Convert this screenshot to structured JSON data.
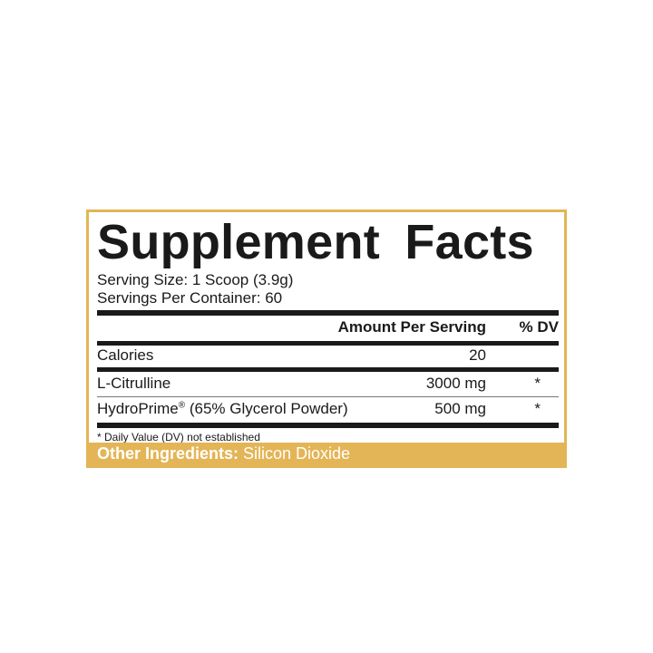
{
  "title": "Supplement Facts",
  "serving_size": "Serving Size: 1 Scoop (3.9g)",
  "servings_per_container": "Servings Per Container: 60",
  "header": {
    "amount": "Amount Per Serving",
    "dv": "% DV"
  },
  "rows": [
    {
      "name": "Calories",
      "amount": "20",
      "dv": ""
    },
    {
      "name": "L-Citrulline",
      "amount": "3000 mg",
      "dv": "*"
    },
    {
      "name": "HydroPrime",
      "mark": "®",
      "name_rest": " (65% Glycerol Powder)",
      "amount": "500 mg",
      "dv": "*"
    }
  ],
  "footnote": "* Daily Value (DV) not established",
  "other_ingredients": {
    "label": "Other Ingredients:",
    "value": " Silicon Dioxide"
  },
  "colors": {
    "accent": "#e3b556",
    "text": "#1a1a1a"
  }
}
